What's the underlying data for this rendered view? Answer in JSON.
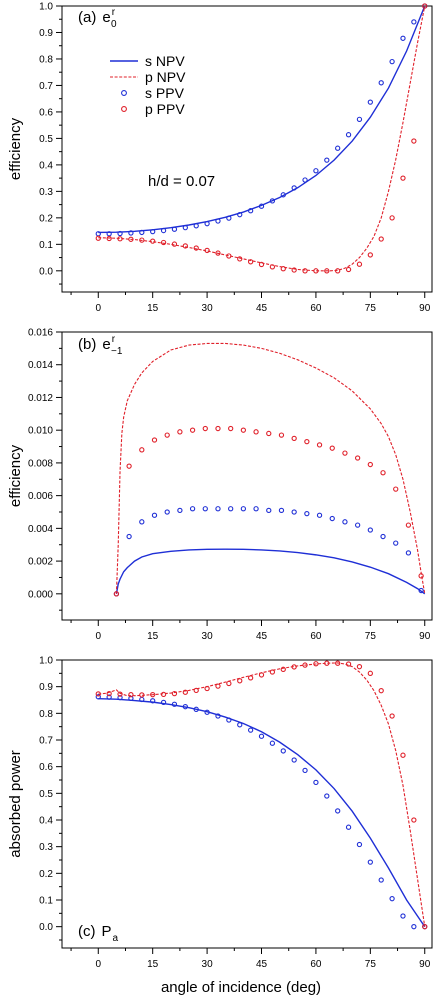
{
  "chart_data": [
    {
      "type": "line",
      "panel_label": "(a)",
      "symbol": {
        "base": "e",
        "sub": "0",
        "sup": "r"
      },
      "ylabel": "efficiency",
      "xlabel": "",
      "xlim": [
        -10,
        92
      ],
      "ylim": [
        -0.08,
        1.0
      ],
      "xticks": [
        0,
        15,
        30,
        45,
        60,
        75,
        90
      ],
      "yticks": [
        "0.0",
        "0.1",
        "0.2",
        "0.3",
        "0.4",
        "0.5",
        "0.6",
        "0.7",
        "0.8",
        "0.9",
        "1.0"
      ],
      "annotation": "h/d = 0.07",
      "legend": [
        {
          "label": "s NPV",
          "style": "solid",
          "color": "#1f2fd6"
        },
        {
          "label": "p NPV",
          "style": "dashed",
          "color": "#e0202a"
        },
        {
          "label": "s PPV",
          "style": "circle",
          "color": "#1f2fd6"
        },
        {
          "label": "p PPV",
          "style": "circle",
          "color": "#e0202a"
        }
      ],
      "series": [
        {
          "name": "s NPV",
          "style": "solid",
          "color": "#1f2fd6",
          "x": [
            0,
            5,
            10,
            15,
            20,
            25,
            30,
            35,
            40,
            45,
            50,
            55,
            60,
            65,
            70,
            75,
            80,
            85,
            90
          ],
          "y": [
            0.145,
            0.146,
            0.149,
            0.155,
            0.163,
            0.173,
            0.186,
            0.202,
            0.222,
            0.247,
            0.277,
            0.314,
            0.36,
            0.418,
            0.49,
            0.58,
            0.69,
            0.83,
            1.0
          ]
        },
        {
          "name": "p NPV",
          "style": "dashed",
          "color": "#e0202a",
          "x": [
            0,
            5,
            10,
            15,
            20,
            25,
            30,
            35,
            40,
            45,
            50,
            55,
            60,
            62,
            64,
            66,
            68,
            70,
            72,
            74,
            76,
            78,
            80,
            82,
            84,
            86,
            88,
            90
          ],
          "y": [
            0.125,
            0.123,
            0.118,
            0.11,
            0.1,
            0.088,
            0.075,
            0.06,
            0.045,
            0.03,
            0.016,
            0.005,
            0.0,
            0.0,
            0.0,
            0.002,
            0.01,
            0.025,
            0.05,
            0.085,
            0.13,
            0.2,
            0.3,
            0.42,
            0.56,
            0.71,
            0.86,
            1.0
          ]
        },
        {
          "name": "s PPV",
          "style": "circle",
          "color": "#1f2fd6",
          "x": [
            0,
            3,
            6,
            9,
            12,
            15,
            18,
            21,
            24,
            27,
            30,
            33,
            36,
            39,
            42,
            45,
            48,
            51,
            54,
            57,
            60,
            63,
            66,
            69,
            72,
            75,
            78,
            81,
            84,
            87,
            90
          ],
          "y": [
            0.14,
            0.14,
            0.141,
            0.143,
            0.145,
            0.148,
            0.152,
            0.157,
            0.163,
            0.17,
            0.178,
            0.188,
            0.199,
            0.212,
            0.227,
            0.244,
            0.264,
            0.287,
            0.313,
            0.343,
            0.378,
            0.418,
            0.463,
            0.514,
            0.572,
            0.637,
            0.71,
            0.79,
            0.878,
            0.94,
            1.0
          ]
        },
        {
          "name": "p PPV",
          "style": "circle",
          "color": "#e0202a",
          "x": [
            0,
            3,
            6,
            9,
            12,
            15,
            18,
            21,
            24,
            27,
            30,
            33,
            36,
            39,
            42,
            45,
            48,
            51,
            54,
            57,
            60,
            63,
            66,
            69,
            72,
            75,
            78,
            81,
            84,
            87,
            90
          ],
          "y": [
            0.123,
            0.122,
            0.121,
            0.119,
            0.116,
            0.112,
            0.107,
            0.101,
            0.094,
            0.086,
            0.077,
            0.067,
            0.056,
            0.045,
            0.034,
            0.024,
            0.015,
            0.008,
            0.003,
            0.0,
            0.0,
            0.0,
            0.0,
            0.005,
            0.025,
            0.06,
            0.12,
            0.2,
            0.35,
            0.49,
            1.0
          ]
        }
      ]
    },
    {
      "type": "line",
      "panel_label": "(b)",
      "symbol": {
        "base": "e",
        "sub": "−1",
        "sup": "r"
      },
      "ylabel": "efficiency",
      "xlabel": "",
      "xlim": [
        -10,
        92
      ],
      "ylim": [
        -0.0016,
        0.016
      ],
      "xticks": [
        0,
        15,
        30,
        45,
        60,
        75,
        90
      ],
      "yticks": [
        "0.000",
        "0.002",
        "0.004",
        "0.006",
        "0.008",
        "0.010",
        "0.012",
        "0.014",
        "0.016"
      ],
      "series": [
        {
          "name": "s NPV",
          "style": "solid",
          "color": "#1f2fd6",
          "x": [
            5,
            5.5,
            6,
            7,
            8,
            10,
            12,
            15,
            20,
            25,
            30,
            35,
            40,
            45,
            50,
            55,
            60,
            65,
            70,
            75,
            80,
            85,
            88,
            90
          ],
          "y": [
            0.0,
            0.0006,
            0.0009,
            0.00135,
            0.0016,
            0.002,
            0.00225,
            0.00245,
            0.0026,
            0.00268,
            0.00272,
            0.00273,
            0.00272,
            0.00268,
            0.00262,
            0.00252,
            0.00238,
            0.0022,
            0.00195,
            0.00163,
            0.00123,
            0.0007,
            0.00032,
            0.0
          ]
        },
        {
          "name": "p NPV",
          "style": "dashed",
          "color": "#e0202a",
          "x": [
            5,
            5.5,
            6,
            6.5,
            7,
            8,
            10,
            12,
            15,
            20,
            25,
            30,
            35,
            40,
            45,
            50,
            55,
            60,
            65,
            70,
            75,
            78,
            80,
            82,
            84,
            86,
            88,
            89,
            90
          ],
          "y": [
            0.0,
            0.003,
            0.0075,
            0.0098,
            0.0108,
            0.0118,
            0.0128,
            0.0135,
            0.0142,
            0.0149,
            0.0152,
            0.0153,
            0.0153,
            0.0152,
            0.015,
            0.0147,
            0.0143,
            0.0138,
            0.0132,
            0.0124,
            0.0113,
            0.0104,
            0.0096,
            0.0085,
            0.007,
            0.005,
            0.0027,
            0.0013,
            0.0
          ]
        },
        {
          "name": "s PPV",
          "style": "circle",
          "color": "#1f2fd6",
          "x": [
            5,
            8.5,
            12,
            15.5,
            19,
            22.5,
            26,
            29.5,
            33,
            36.5,
            40,
            43.5,
            47,
            50.5,
            54,
            57.5,
            61,
            64.5,
            68,
            71.5,
            75,
            78.5,
            82,
            85.5,
            89
          ],
          "y": [
            0.0,
            0.0035,
            0.0044,
            0.0048,
            0.005,
            0.0051,
            0.0052,
            0.0052,
            0.0052,
            0.0052,
            0.0052,
            0.0052,
            0.0051,
            0.0051,
            0.005,
            0.0049,
            0.0048,
            0.0046,
            0.0044,
            0.0042,
            0.0039,
            0.0035,
            0.0031,
            0.0025,
            0.0002
          ]
        },
        {
          "name": "p PPV",
          "style": "circle",
          "color": "#e0202a",
          "x": [
            5,
            8.5,
            12,
            15.5,
            19,
            22.5,
            26,
            29.5,
            33,
            36.5,
            40,
            43.5,
            47,
            50.5,
            54,
            57.5,
            61,
            64.5,
            68,
            71.5,
            75,
            78.5,
            82,
            85.5,
            89
          ],
          "y": [
            0.0,
            0.0078,
            0.0088,
            0.0094,
            0.0097,
            0.0099,
            0.01,
            0.0101,
            0.0101,
            0.0101,
            0.01,
            0.0099,
            0.0098,
            0.0097,
            0.0095,
            0.0093,
            0.0091,
            0.0089,
            0.0086,
            0.0083,
            0.0079,
            0.0074,
            0.0064,
            0.0042,
            0.0011
          ]
        }
      ]
    },
    {
      "type": "line",
      "panel_label": "(c)",
      "symbol": {
        "base": "P",
        "sub": "a",
        "sup": ""
      },
      "ylabel": "absorbed power",
      "xlabel": "angle of incidence (deg)",
      "xlim": [
        -10,
        92
      ],
      "ylim": [
        -0.08,
        1.0
      ],
      "xticks": [
        0,
        15,
        30,
        45,
        60,
        75,
        90
      ],
      "yticks": [
        "0.0",
        "0.1",
        "0.2",
        "0.3",
        "0.4",
        "0.5",
        "0.6",
        "0.7",
        "0.8",
        "0.9",
        "1.0"
      ],
      "series": [
        {
          "name": "s NPV",
          "style": "solid",
          "color": "#1f2fd6",
          "x": [
            0,
            5,
            10,
            15,
            20,
            25,
            30,
            35,
            40,
            45,
            50,
            55,
            60,
            65,
            70,
            75,
            80,
            85,
            88,
            90
          ],
          "y": [
            0.855,
            0.853,
            0.848,
            0.842,
            0.833,
            0.821,
            0.806,
            0.786,
            0.762,
            0.731,
            0.692,
            0.645,
            0.588,
            0.518,
            0.433,
            0.332,
            0.22,
            0.1,
            0.04,
            0.0
          ]
        },
        {
          "name": "p NPV",
          "style": "dashed",
          "color": "#e0202a",
          "x": [
            0,
            2,
            4,
            5,
            6,
            8,
            10,
            15,
            20,
            25,
            30,
            35,
            40,
            45,
            50,
            55,
            60,
            63,
            66,
            68,
            70,
            72,
            74,
            76,
            78,
            80,
            82,
            84,
            86,
            88,
            90
          ],
          "y": [
            0.872,
            0.875,
            0.883,
            0.888,
            0.875,
            0.866,
            0.866,
            0.87,
            0.876,
            0.886,
            0.9,
            0.917,
            0.935,
            0.952,
            0.967,
            0.978,
            0.985,
            0.988,
            0.989,
            0.985,
            0.975,
            0.955,
            0.925,
            0.885,
            0.83,
            0.76,
            0.66,
            0.53,
            0.36,
            0.18,
            0.0
          ]
        },
        {
          "name": "s PPV",
          "style": "circle",
          "color": "#1f2fd6",
          "x": [
            0,
            3,
            6,
            9,
            12,
            15,
            18,
            21,
            24,
            27,
            30,
            33,
            36,
            39,
            42,
            45,
            48,
            51,
            54,
            57,
            60,
            63,
            66,
            69,
            72,
            75,
            78,
            81,
            84,
            87,
            90
          ],
          "y": [
            0.862,
            0.861,
            0.859,
            0.856,
            0.852,
            0.847,
            0.841,
            0.834,
            0.825,
            0.815,
            0.804,
            0.79,
            0.775,
            0.757,
            0.737,
            0.714,
            0.688,
            0.659,
            0.625,
            0.586,
            0.541,
            0.49,
            0.434,
            0.373,
            0.308,
            0.242,
            0.175,
            0.105,
            0.04,
            0.0,
            0.0
          ]
        },
        {
          "name": "p PPV",
          "style": "circle",
          "color": "#e0202a",
          "x": [
            0,
            3,
            6,
            9,
            12,
            15,
            18,
            21,
            24,
            27,
            30,
            33,
            36,
            39,
            42,
            45,
            48,
            51,
            54,
            57,
            60,
            63,
            66,
            69,
            72,
            75,
            78,
            81,
            84,
            87,
            90
          ],
          "y": [
            0.873,
            0.874,
            0.872,
            0.87,
            0.869,
            0.87,
            0.871,
            0.874,
            0.879,
            0.886,
            0.893,
            0.902,
            0.912,
            0.922,
            0.933,
            0.944,
            0.955,
            0.965,
            0.974,
            0.981,
            0.986,
            0.988,
            0.988,
            0.985,
            0.975,
            0.95,
            0.885,
            0.79,
            0.643,
            0.4,
            0.0
          ]
        }
      ]
    }
  ]
}
